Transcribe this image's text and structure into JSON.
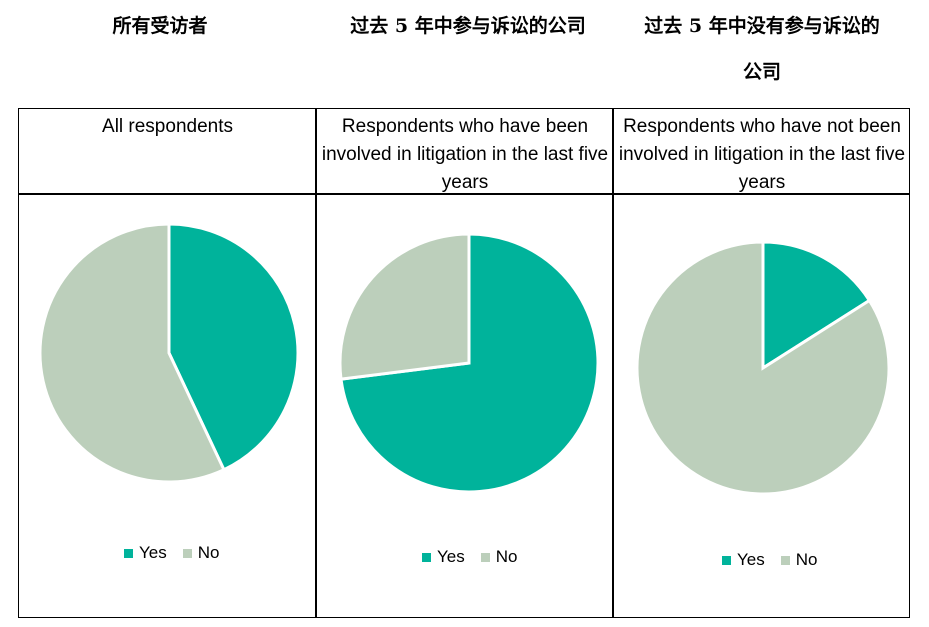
{
  "headers_cn": {
    "all": "所有受访者",
    "litigated": "过去 5 年中参与诉讼的公司",
    "not_litigated_line1": "过去 5 年中没有参与诉讼的",
    "not_litigated_line2": "公司"
  },
  "legend": {
    "yes": "Yes",
    "no": "No"
  },
  "colors": {
    "yes": "#00b39b",
    "no": "#bccfbb"
  },
  "chart_data": [
    {
      "type": "pie",
      "title": "All respondents",
      "series": [
        {
          "values": [
            43,
            57
          ]
        }
      ],
      "categories": [
        "Yes",
        "No"
      ]
    },
    {
      "type": "pie",
      "title": "Respondents who have been involved in litigation in the last five years",
      "series": [
        {
          "values": [
            73,
            27
          ]
        }
      ],
      "categories": [
        "Yes",
        "No"
      ]
    },
    {
      "type": "pie",
      "title": "Respondents who have not been involved in litigation in the last five years",
      "series": [
        {
          "values": [
            16,
            84
          ]
        }
      ],
      "categories": [
        "Yes",
        "No"
      ]
    }
  ]
}
